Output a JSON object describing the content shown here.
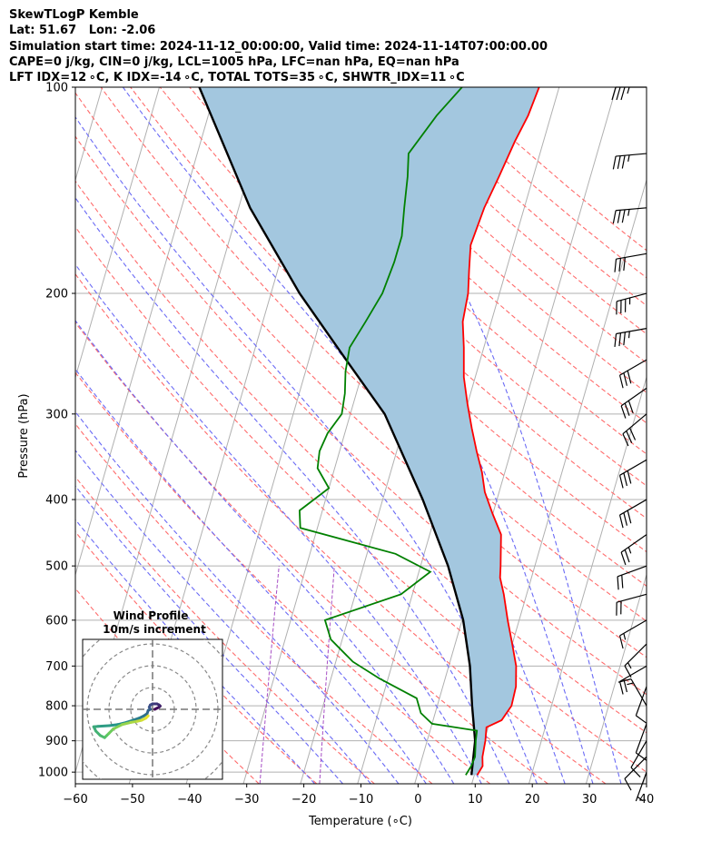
{
  "header": {
    "line1": "SkewTLogP Kemble",
    "line2": "Lat: 51.67   Lon: -2.06",
    "line3": "Simulation start time: 2024-11-12_00:00:00, Valid time: 2024-11-14T07:00:00.00",
    "line4": "CAPE=0 j/kg, CIN=0 j/kg, LCL=1005 hPa, LFC=nan hPa, EQ=nan hPa",
    "line5": "LFT IDX=12 ∘C, K IDX=-14 ∘C, TOTAL TOTS=35 ∘C, SHWTR_IDX=11 ∘C"
  },
  "colors": {
    "temperature": "#ff0000",
    "dewpoint": "#008000",
    "parcel": "#000000",
    "cape_fill": "#a3c7df",
    "dry_adiabat": "#ff6b6b",
    "moist_adiabat": "#6a6af5",
    "mixing_ratio": "#a64dc4",
    "isotherm": "#b0b0b0"
  },
  "chart_data": {
    "type": "skew-t",
    "xlabel": "Temperature (∘C)",
    "ylabel": "Pressure (hPa)",
    "xlim": [
      -60,
      40
    ],
    "ylim": [
      1040,
      100
    ],
    "x_ticks": [
      "−60",
      "−50",
      "−40",
      "−30",
      "−20",
      "−10",
      "0",
      "10",
      "20",
      "30",
      "40"
    ],
    "y_ticks": [
      "100",
      "200",
      "300",
      "400",
      "500",
      "600",
      "700",
      "800",
      "900",
      "1000"
    ],
    "series": [
      {
        "name": "Temperature",
        "points": [
          [
            10.5,
            1010
          ],
          [
            11.0,
            980
          ],
          [
            10.5,
            950
          ],
          [
            10.2,
            900
          ],
          [
            9.7,
            860
          ],
          [
            12.0,
            840
          ],
          [
            13,
            800
          ],
          [
            12.8,
            750
          ],
          [
            11.8,
            700
          ],
          [
            10.0,
            650
          ],
          [
            8.0,
            600
          ],
          [
            6.0,
            550
          ],
          [
            4.5,
            520
          ],
          [
            4.0,
            500
          ],
          [
            2.5,
            450
          ],
          [
            0.0,
            420
          ],
          [
            -2.5,
            390
          ],
          [
            -4.0,
            365
          ],
          [
            -6.0,
            340
          ],
          [
            -8.0,
            315
          ],
          [
            -10.0,
            290
          ],
          [
            -12.0,
            265
          ],
          [
            -13.5,
            240
          ],
          [
            -15.0,
            220
          ],
          [
            -15.5,
            200
          ],
          [
            -16.5,
            185
          ],
          [
            -17.5,
            170
          ],
          [
            -17.0,
            150
          ],
          [
            -16.0,
            135
          ],
          [
            -15.0,
            120
          ],
          [
            -14.0,
            110
          ],
          [
            -13.5,
            100
          ]
        ]
      },
      {
        "name": "Dewpoint",
        "points": [
          [
            8.5,
            1010
          ],
          [
            9.0,
            980
          ],
          [
            9.2,
            950
          ],
          [
            8.5,
            900
          ],
          [
            8.2,
            870
          ],
          [
            0.0,
            850
          ],
          [
            -2.5,
            820
          ],
          [
            -4.0,
            780
          ],
          [
            -11.5,
            730
          ],
          [
            -17.0,
            690
          ],
          [
            -22.0,
            640
          ],
          [
            -24.0,
            600
          ],
          [
            -12.0,
            550
          ],
          [
            -8.0,
            510
          ],
          [
            -15.0,
            480
          ],
          [
            -33.0,
            440
          ],
          [
            -34.0,
            415
          ],
          [
            -30.0,
            385
          ],
          [
            -33.0,
            360
          ],
          [
            -33.5,
            340
          ],
          [
            -33.0,
            320
          ],
          [
            -31.5,
            300
          ],
          [
            -32.0,
            280
          ],
          [
            -33.0,
            260
          ],
          [
            -33.5,
            240
          ],
          [
            -32.0,
            220
          ],
          [
            -30.5,
            200
          ],
          [
            -30.0,
            180
          ],
          [
            -30.0,
            165
          ],
          [
            -31.0,
            150
          ],
          [
            -32.0,
            135
          ],
          [
            -33.0,
            125
          ],
          [
            -30.0,
            110
          ],
          [
            -27.0,
            100
          ]
        ]
      },
      {
        "name": "Parcel",
        "points": [
          [
            9.5,
            1010
          ],
          [
            8.4,
            900
          ],
          [
            6.1,
            800
          ],
          [
            3.7,
            700
          ],
          [
            0.2,
            600
          ],
          [
            -5.2,
            500
          ],
          [
            -13.0,
            400
          ],
          [
            -24.0,
            300
          ],
          [
            -33.5,
            250
          ],
          [
            -45.0,
            200
          ],
          [
            -58.0,
            150
          ],
          [
            -73.0,
            100
          ]
        ]
      }
    ],
    "wind_barbs": [
      {
        "pressure": 100,
        "speed_kt": 35,
        "direction": 270
      },
      {
        "pressure": 125,
        "speed_kt": 35,
        "direction": 265
      },
      {
        "pressure": 150,
        "speed_kt": 35,
        "direction": 265
      },
      {
        "pressure": 175,
        "speed_kt": 30,
        "direction": 260
      },
      {
        "pressure": 200,
        "speed_kt": 35,
        "direction": 255
      },
      {
        "pressure": 225,
        "speed_kt": 35,
        "direction": 260
      },
      {
        "pressure": 250,
        "speed_kt": 30,
        "direction": 240
      },
      {
        "pressure": 275,
        "speed_kt": 30,
        "direction": 235
      },
      {
        "pressure": 300,
        "speed_kt": 30,
        "direction": 230
      },
      {
        "pressure": 350,
        "speed_kt": 30,
        "direction": 240
      },
      {
        "pressure": 400,
        "speed_kt": 30,
        "direction": 240
      },
      {
        "pressure": 450,
        "speed_kt": 25,
        "direction": 235
      },
      {
        "pressure": 500,
        "speed_kt": 20,
        "direction": 250
      },
      {
        "pressure": 550,
        "speed_kt": 20,
        "direction": 255
      },
      {
        "pressure": 600,
        "speed_kt": 15,
        "direction": 240
      },
      {
        "pressure": 650,
        "speed_kt": 15,
        "direction": 225
      },
      {
        "pressure": 700,
        "speed_kt": 20,
        "direction": 240
      },
      {
        "pressure": 750,
        "speed_kt": 10,
        "direction": 200
      },
      {
        "pressure": 800,
        "speed_kt": 15,
        "direction": 330
      },
      {
        "pressure": 850,
        "speed_kt": 10,
        "direction": 200
      },
      {
        "pressure": 900,
        "speed_kt": 10,
        "direction": 210
      },
      {
        "pressure": 950,
        "speed_kt": 10,
        "direction": 225
      },
      {
        "pressure": 1000,
        "speed_kt": 5,
        "direction": 200
      }
    ],
    "hodograph": {
      "title": "Wind Profile",
      "subtitle": "10m/s increment",
      "ring_spacing_ms": 10,
      "points": [
        [
          1,
          0
        ],
        [
          2,
          0.5
        ],
        [
          3,
          1
        ],
        [
          3.5,
          1.5
        ],
        [
          3,
          2
        ],
        [
          2,
          2.5
        ],
        [
          0,
          2.5
        ],
        [
          -1,
          2
        ],
        [
          -1.5,
          1
        ],
        [
          -1,
          0
        ],
        [
          -2,
          -0.5
        ],
        [
          -2.5,
          -2
        ],
        [
          -4,
          -3
        ],
        [
          -6,
          -4
        ],
        [
          -9,
          -5
        ],
        [
          -12,
          -6
        ],
        [
          -16,
          -7
        ],
        [
          -20,
          -7.5
        ],
        [
          -25,
          -7.8
        ],
        [
          -27,
          -8
        ],
        [
          -26,
          -10
        ],
        [
          -24,
          -12
        ],
        [
          -22,
          -13
        ],
        [
          -21,
          -12
        ],
        [
          -20,
          -11
        ],
        [
          -18,
          -9
        ],
        [
          -14,
          -7
        ],
        [
          -10,
          -6
        ],
        [
          -7,
          -5.5
        ],
        [
          -5,
          -5
        ],
        [
          -3,
          -4
        ],
        [
          -2,
          -3
        ]
      ]
    }
  }
}
